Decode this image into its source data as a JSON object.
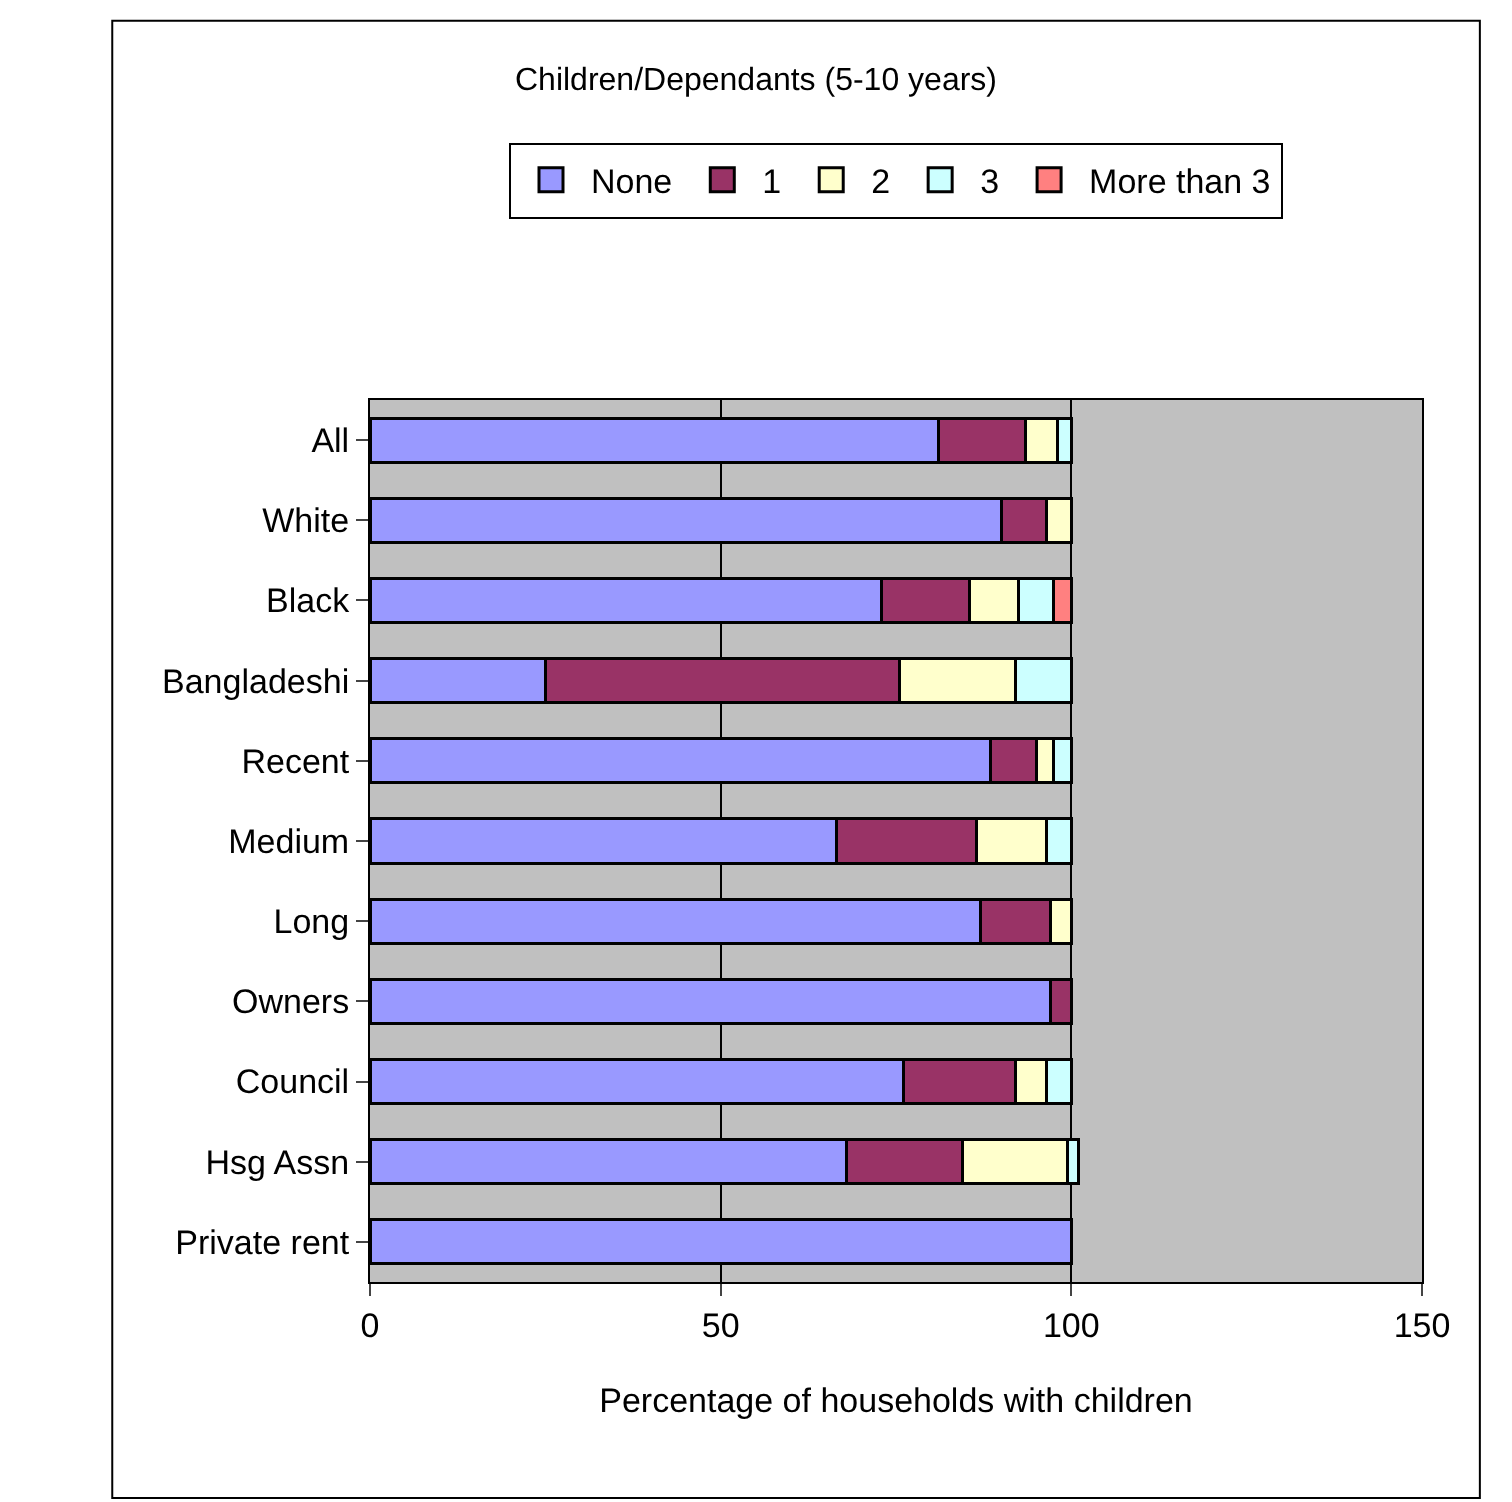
{
  "chart_data": {
    "type": "bar",
    "orientation": "horizontal",
    "stacked": true,
    "title": "Children/Dependants (5-10 years)",
    "xlabel": "Percentage of households with children",
    "categories": [
      "All",
      "White",
      "Black",
      "Bangladeshi",
      "Recent",
      "Medium",
      "Long",
      "Owners",
      "Council",
      "Hsg Assn",
      "Private rent"
    ],
    "series": [
      {
        "name": "None",
        "color": "#9999ff",
        "values": [
          81,
          90,
          73,
          25,
          88.5,
          66.5,
          87,
          97,
          76,
          68,
          100
        ]
      },
      {
        "name": "1",
        "color": "#993366",
        "values": [
          12.5,
          6.5,
          12.5,
          50.5,
          6.5,
          20,
          10,
          3,
          16,
          16.5,
          null
        ]
      },
      {
        "name": "2",
        "color": "#ffffcc",
        "values": [
          4.5,
          3.5,
          7,
          16.5,
          2.5,
          10,
          3,
          null,
          4.5,
          15,
          null
        ]
      },
      {
        "name": "3",
        "color": "#ccffff",
        "values": [
          2,
          null,
          5,
          8,
          2.5,
          3.5,
          null,
          null,
          3.5,
          1.5,
          null
        ]
      },
      {
        "name": "More than 3",
        "color": "#ff8080",
        "values": [
          null,
          null,
          2.5,
          null,
          null,
          null,
          null,
          null,
          null,
          null,
          null
        ]
      }
    ],
    "xlim": [
      0,
      150
    ],
    "xticks": [
      0,
      50,
      100,
      150
    ],
    "grid": "x",
    "legend": "top"
  }
}
